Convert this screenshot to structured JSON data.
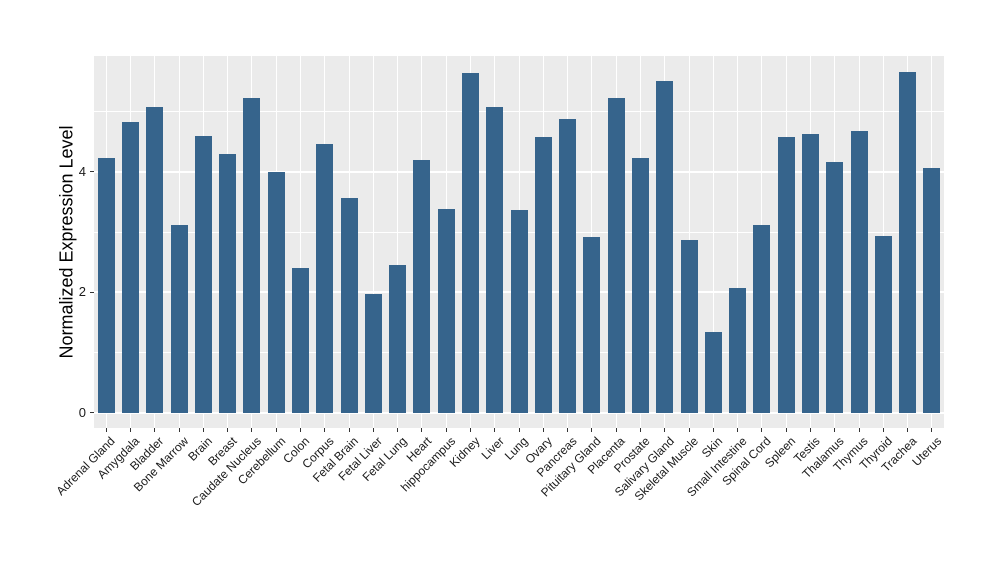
{
  "chart_data": {
    "type": "bar",
    "title": "",
    "xlabel": "",
    "ylabel": "Normalized Expression Level",
    "categories": [
      "Adrenal Gland",
      "Amygdala",
      "Bladder",
      "Bone Marrow",
      "Brain",
      "Breast",
      "Caudate Nucleus",
      "Cerebellum",
      "Colon",
      "Corpus",
      "Fetal Brain",
      "Fetal Liver",
      "Fetal Lung",
      "Heart",
      "hippocampus",
      "Kidney",
      "Liver",
      "Lung",
      "Ovary",
      "Pancreas",
      "Pituitary Gland",
      "Placenta",
      "Prostate",
      "Salivary Gland",
      "Skeletal Muscle",
      "Skin",
      "Small Intestine",
      "Spinal Cord",
      "Spleen",
      "Testis",
      "Thalamus",
      "Thymus",
      "Thyroid",
      "Trachea",
      "Uterus"
    ],
    "values": [
      4.22,
      4.83,
      5.08,
      3.12,
      4.59,
      4.3,
      5.22,
      4.0,
      2.4,
      4.46,
      3.56,
      1.97,
      2.45,
      4.19,
      3.39,
      5.64,
      5.07,
      3.37,
      4.58,
      4.88,
      2.92,
      5.22,
      4.22,
      5.5,
      2.86,
      1.34,
      2.08,
      3.12,
      4.57,
      4.62,
      4.16,
      4.67,
      2.93,
      5.65,
      4.06
    ],
    "yticks": [
      0,
      2,
      4
    ],
    "yticks_minor": [
      1,
      3,
      5
    ],
    "ylim": [
      -0.25,
      5.92
    ],
    "grid": true,
    "legend": false,
    "layout_hints": {
      "x_label_rotation_deg": 45,
      "bar_orientation": "vertical"
    },
    "colors": {
      "bar": "#36648C",
      "panel_background": "#EBEBEB",
      "gridline": "#FFFFFF",
      "tick_mark": "#333333",
      "axis_text": "#1A1A1A",
      "axis_title": "#000000",
      "figure_background": "#FFFFFF"
    }
  }
}
